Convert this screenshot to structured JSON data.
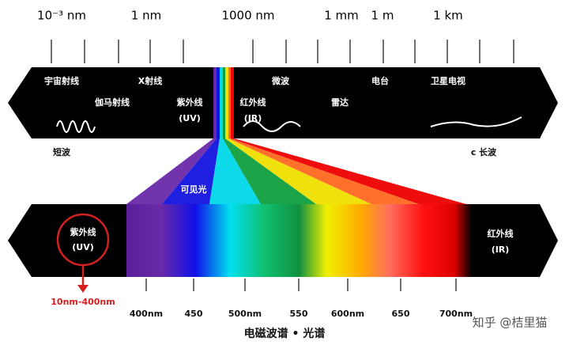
{
  "scale_labels": [
    "10⁻³ nm",
    "1 nm",
    "1000 nm",
    "1 mm",
    "1 m",
    "1 km"
  ],
  "top_band": [
    "宇宙射线",
    "X射线",
    "微波",
    "电台",
    "卫星电视",
    "伽马射线",
    "紫外线",
    "(UV)",
    "红外线",
    "(IR)",
    "雷达"
  ],
  "short_wave": "短波",
  "long_wave": "c 长波",
  "visible_label": "可见光",
  "uv": {
    "name": "紫外线",
    "abbr": "(UV)",
    "range": "10nm-400nm"
  },
  "ir": {
    "name": "红外线",
    "abbr": "(IR)"
  },
  "wavelength_labels": [
    "400nm",
    "450",
    "500nm",
    "550",
    "600nm",
    "650",
    "700nm"
  ],
  "caption": "电磁波谱 • 光谱",
  "watermark": "知乎 @桔里猫"
}
